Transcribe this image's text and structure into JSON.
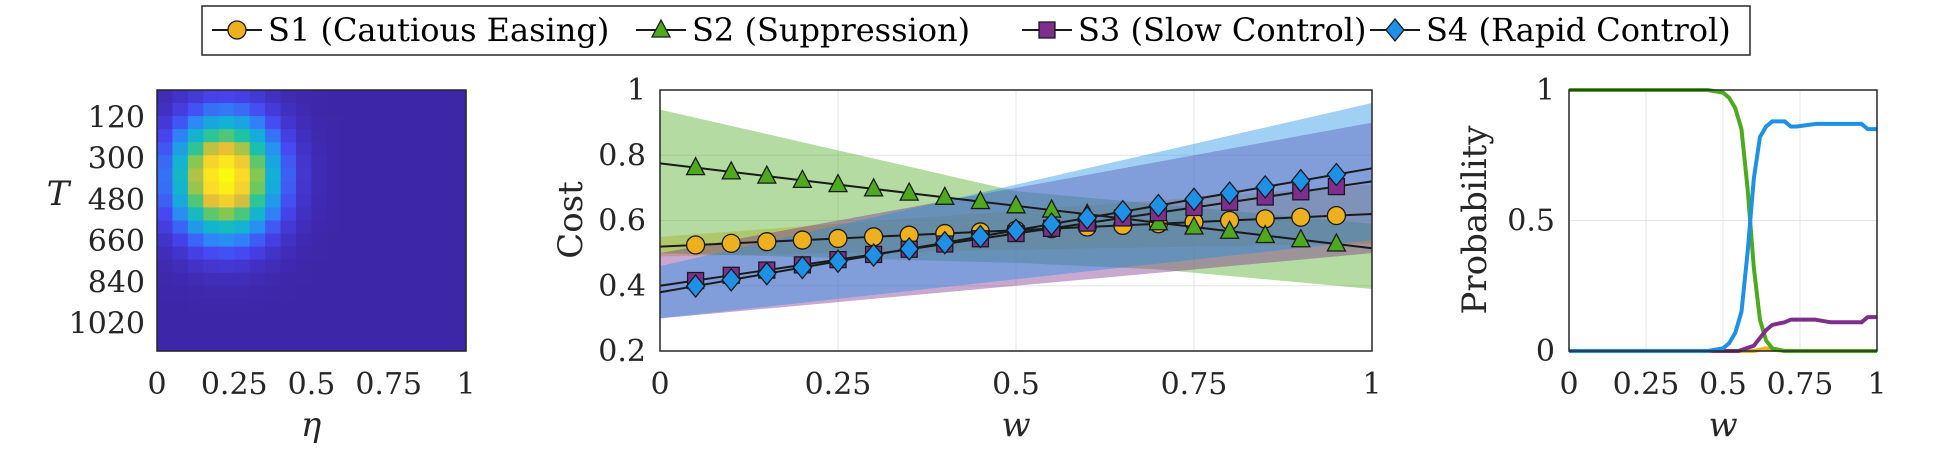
{
  "legend": [
    {
      "label": "S1 (Cautious Easing)",
      "color": "#EDB120",
      "marker": "circle"
    },
    {
      "label": "S2 (Suppression)",
      "color": "#4DAA1E",
      "marker": "triangle"
    },
    {
      "label": "S3 (Slow Control)",
      "color": "#7E2F8E",
      "marker": "square"
    },
    {
      "label": "S4 (Rapid Control)",
      "color": "#1E90E6",
      "marker": "diamond"
    }
  ],
  "chart_data": [
    {
      "type": "heatmap",
      "xlabel": "η",
      "ylabel": "T",
      "xticks": [
        "0",
        "0.25",
        "0.5",
        "0.75",
        "1"
      ],
      "yticks": [
        "120",
        "300",
        "480",
        "660",
        "840",
        "1020"
      ],
      "xlim": [
        0,
        1
      ],
      "ylim": [
        0,
        1140
      ],
      "grid": {
        "nx": 20,
        "ny": 20
      },
      "peak": {
        "eta": 0.22,
        "T": 380
      },
      "spread": {
        "eta": 0.11,
        "T": 170
      },
      "colormap": [
        "#3E26A8",
        "#4745F2",
        "#2E87F7",
        "#12B1D6",
        "#1AC3A8",
        "#7BC954",
        "#E4BC3A",
        "#FBD928",
        "#F9FB0E"
      ]
    },
    {
      "type": "line",
      "xlabel": "w",
      "ylabel": "Cost",
      "xlim": [
        0,
        1
      ],
      "ylim": [
        0.2,
        1
      ],
      "xticks": [
        "0",
        "0.25",
        "0.5",
        "0.75",
        "1"
      ],
      "yticks": [
        "0.2",
        "0.4",
        "0.6",
        "0.8",
        "1"
      ],
      "grid": true,
      "x": [
        0,
        0.05,
        0.1,
        0.15,
        0.2,
        0.25,
        0.3,
        0.35,
        0.4,
        0.45,
        0.5,
        0.55,
        0.6,
        0.65,
        0.7,
        0.75,
        0.8,
        0.85,
        0.9,
        0.95,
        1
      ],
      "series": [
        {
          "name": "S1 (Cautious Easing)",
          "color": "#EDB120",
          "marker": "circle",
          "values": [
            0.52,
            0.525,
            0.53,
            0.535,
            0.54,
            0.545,
            0.55,
            0.555,
            0.56,
            0.565,
            0.57,
            0.575,
            0.58,
            0.585,
            0.59,
            0.595,
            0.6,
            0.605,
            0.61,
            0.615,
            0.62
          ],
          "band_lower": [
            0.49,
            0.492,
            0.494,
            0.496,
            0.498,
            0.5,
            0.502,
            0.504,
            0.506,
            0.508,
            0.51,
            0.512,
            0.514,
            0.516,
            0.518,
            0.52,
            0.522,
            0.524,
            0.526,
            0.528,
            0.53
          ],
          "band_upper": [
            0.55,
            0.558,
            0.566,
            0.574,
            0.582,
            0.59,
            0.598,
            0.606,
            0.614,
            0.622,
            0.63,
            0.638,
            0.646,
            0.654,
            0.662,
            0.67,
            0.678,
            0.686,
            0.694,
            0.702,
            0.71
          ]
        },
        {
          "name": "S2 (Suppression)",
          "color": "#4DAA1E",
          "marker": "triangle",
          "values": [
            0.775,
            0.762,
            0.749,
            0.736,
            0.723,
            0.71,
            0.697,
            0.684,
            0.671,
            0.658,
            0.645,
            0.632,
            0.619,
            0.606,
            0.593,
            0.58,
            0.567,
            0.554,
            0.541,
            0.528,
            0.515
          ],
          "band_lower": [
            0.5,
            0.497,
            0.494,
            0.491,
            0.488,
            0.485,
            0.482,
            0.479,
            0.476,
            0.473,
            0.47,
            0.465,
            0.46,
            0.455,
            0.45,
            0.44,
            0.43,
            0.42,
            0.41,
            0.4,
            0.39
          ],
          "band_upper": [
            0.94,
            0.915,
            0.89,
            0.865,
            0.84,
            0.815,
            0.79,
            0.765,
            0.74,
            0.715,
            0.69,
            0.68,
            0.67,
            0.66,
            0.65,
            0.64,
            0.63,
            0.62,
            0.61,
            0.6,
            0.59
          ]
        },
        {
          "name": "S3 (Slow Control)",
          "color": "#7E2F8E",
          "marker": "square",
          "values": [
            0.4,
            0.416,
            0.432,
            0.448,
            0.464,
            0.48,
            0.496,
            0.512,
            0.528,
            0.544,
            0.56,
            0.576,
            0.592,
            0.608,
            0.624,
            0.64,
            0.656,
            0.672,
            0.688,
            0.704,
            0.72
          ],
          "band_lower": [
            0.3,
            0.31,
            0.32,
            0.33,
            0.34,
            0.35,
            0.36,
            0.37,
            0.38,
            0.39,
            0.4,
            0.41,
            0.42,
            0.43,
            0.44,
            0.45,
            0.46,
            0.47,
            0.48,
            0.49,
            0.5
          ],
          "band_upper": [
            0.5,
            0.52,
            0.54,
            0.56,
            0.58,
            0.6,
            0.62,
            0.64,
            0.66,
            0.68,
            0.7,
            0.72,
            0.74,
            0.76,
            0.78,
            0.8,
            0.82,
            0.84,
            0.86,
            0.88,
            0.9
          ]
        },
        {
          "name": "S4 (Rapid Control)",
          "color": "#1E90E6",
          "marker": "diamond",
          "values": [
            0.38,
            0.399,
            0.418,
            0.437,
            0.456,
            0.475,
            0.494,
            0.513,
            0.532,
            0.551,
            0.57,
            0.589,
            0.608,
            0.627,
            0.646,
            0.665,
            0.684,
            0.703,
            0.722,
            0.741,
            0.76
          ],
          "band_lower": [
            0.3,
            0.312,
            0.324,
            0.336,
            0.348,
            0.36,
            0.372,
            0.384,
            0.396,
            0.408,
            0.42,
            0.432,
            0.444,
            0.456,
            0.468,
            0.48,
            0.492,
            0.504,
            0.516,
            0.528,
            0.54
          ],
          "band_upper": [
            0.46,
            0.485,
            0.51,
            0.535,
            0.56,
            0.585,
            0.61,
            0.635,
            0.66,
            0.685,
            0.71,
            0.735,
            0.76,
            0.785,
            0.81,
            0.835,
            0.86,
            0.885,
            0.91,
            0.935,
            0.96
          ]
        }
      ]
    },
    {
      "type": "line",
      "xlabel": "w",
      "ylabel": "Probability",
      "xlim": [
        0,
        1
      ],
      "ylim": [
        0,
        1
      ],
      "xticks": [
        "0",
        "0.25",
        "0.5",
        "0.75",
        "1"
      ],
      "yticks": [
        "0",
        "0.5",
        "1"
      ],
      "grid": true,
      "series": [
        {
          "name": "S1 (Cautious Easing)",
          "color": "#EDB120",
          "x": [
            0,
            0.6,
            0.62,
            0.64,
            0.66,
            0.7,
            0.75,
            0.8,
            0.9,
            1
          ],
          "values": [
            0,
            0,
            0.005,
            0.01,
            0.005,
            0,
            0,
            0,
            0,
            0
          ]
        },
        {
          "name": "S2 (Suppression)",
          "color": "#4DAA1E",
          "x": [
            0,
            0.45,
            0.5,
            0.52,
            0.54,
            0.56,
            0.58,
            0.6,
            0.62,
            0.64,
            0.66,
            0.7,
            0.75,
            0.8,
            0.9,
            1
          ],
          "values": [
            1,
            1,
            0.99,
            0.97,
            0.93,
            0.85,
            0.62,
            0.32,
            0.12,
            0.04,
            0.01,
            0,
            0,
            0,
            0,
            0
          ]
        },
        {
          "name": "S3 (Slow Control)",
          "color": "#7E2F8E",
          "x": [
            0,
            0.55,
            0.6,
            0.62,
            0.64,
            0.66,
            0.7,
            0.72,
            0.74,
            0.8,
            0.85,
            0.9,
            0.95,
            0.97,
            1
          ],
          "values": [
            0,
            0,
            0.02,
            0.05,
            0.08,
            0.1,
            0.11,
            0.12,
            0.12,
            0.12,
            0.11,
            0.11,
            0.11,
            0.13,
            0.13
          ]
        },
        {
          "name": "S4 (Rapid Control)",
          "color": "#1E90E6",
          "x": [
            0,
            0.45,
            0.5,
            0.52,
            0.54,
            0.56,
            0.58,
            0.6,
            0.62,
            0.64,
            0.66,
            0.7,
            0.72,
            0.74,
            0.8,
            0.85,
            0.9,
            0.95,
            0.97,
            1
          ],
          "values": [
            0,
            0,
            0.01,
            0.03,
            0.07,
            0.15,
            0.38,
            0.66,
            0.82,
            0.86,
            0.88,
            0.88,
            0.86,
            0.86,
            0.87,
            0.87,
            0.87,
            0.87,
            0.85,
            0.85
          ]
        }
      ]
    }
  ]
}
